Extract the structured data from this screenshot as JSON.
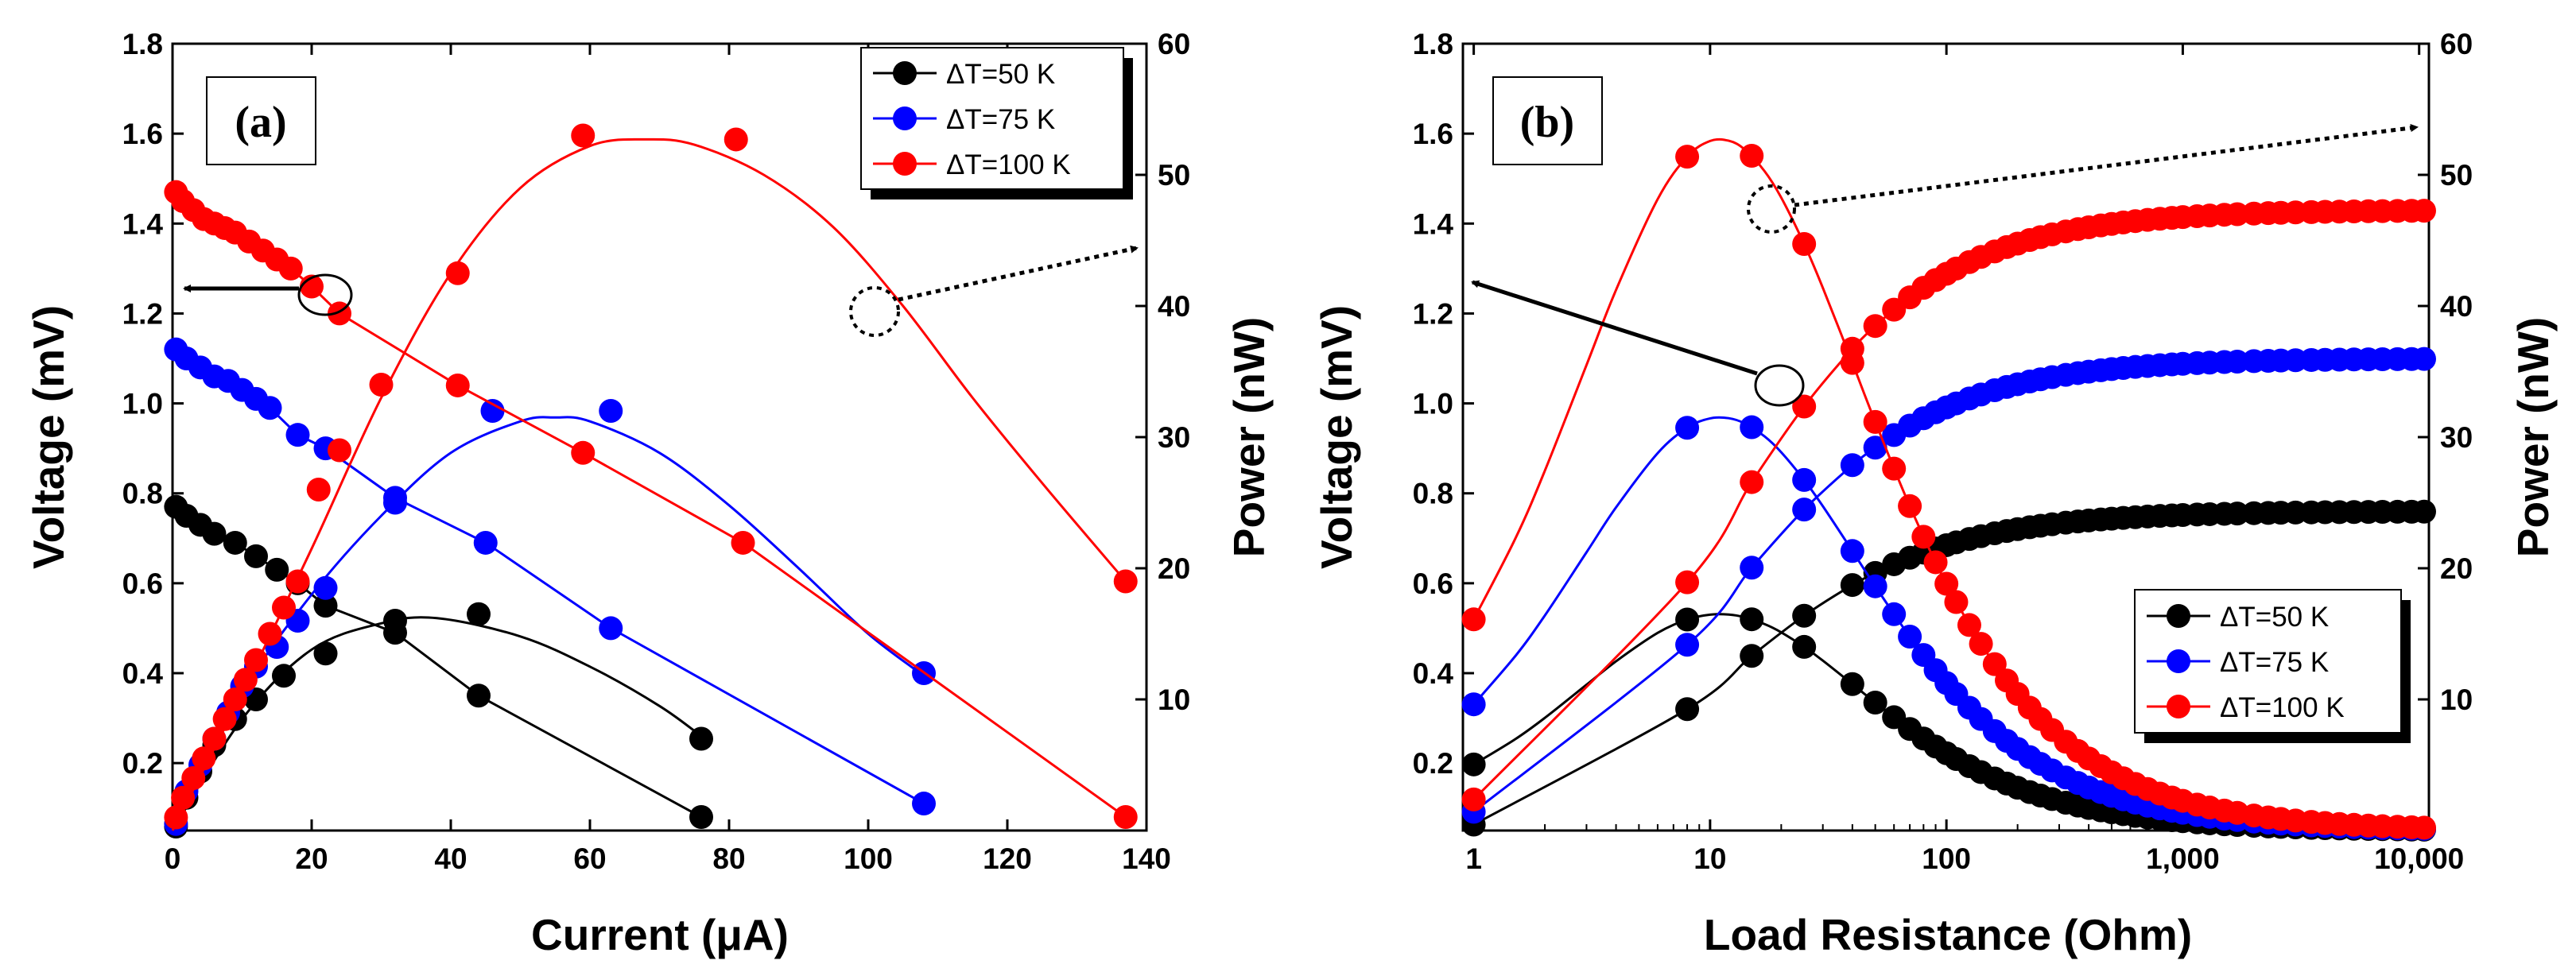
{
  "chart_data": [
    {
      "type": "line",
      "panel_label": "(a)",
      "xlabel": "Current (μA)",
      "ylabel_left": "Voltage (mV)",
      "ylabel_right": "Power (nW)",
      "xlim": [
        0,
        140
      ],
      "ylim_left": [
        0.05,
        1.8
      ],
      "ylim_right": [
        0,
        60
      ],
      "x_ticks": [
        0,
        20,
        40,
        60,
        80,
        100,
        120,
        140
      ],
      "x_tick_labels": [
        "0",
        "20",
        "40",
        "60",
        "80",
        "100",
        "120",
        "140"
      ],
      "y_ticks_left": [
        0.2,
        0.4,
        0.6,
        0.8,
        1.0,
        1.2,
        1.4,
        1.6,
        1.8
      ],
      "y_tick_labels_left": [
        "0.2",
        "0.4",
        "0.6",
        "0.8",
        "1.0",
        "1.2",
        "1.4",
        "1.6",
        "1.8"
      ],
      "y_ticks_right": [
        10,
        20,
        30,
        40,
        50,
        60
      ],
      "y_tick_labels_right": [
        "10",
        "20",
        "30",
        "40",
        "50",
        "60"
      ],
      "legend": [
        "ΔT=50 K",
        "ΔT=75 K",
        "ΔT=100 K"
      ],
      "legend_position": "top-right",
      "series": [
        {
          "name": "ΔT=50 K",
          "color": "#000000",
          "voltage": [
            [
              0.5,
              0.77
            ],
            [
              2,
              0.75
            ],
            [
              4,
              0.73
            ],
            [
              6,
              0.71
            ],
            [
              9,
              0.69
            ],
            [
              12,
              0.66
            ],
            [
              15,
              0.63
            ],
            [
              18,
              0.6
            ],
            [
              22,
              0.55
            ],
            [
              32,
              0.49
            ],
            [
              44,
              0.35
            ],
            [
              76,
              0.08
            ]
          ],
          "power": [
            [
              0.5,
              0.3
            ],
            [
              2,
              2.5
            ],
            [
              4,
              4.5
            ],
            [
              6,
              6.5
            ],
            [
              9,
              8.5
            ],
            [
              12,
              10
            ],
            [
              16,
              11.8
            ],
            [
              22,
              13.5
            ],
            [
              32,
              16
            ],
            [
              44,
              16.5
            ],
            [
              76,
              7
            ]
          ],
          "power_fit": [
            [
              0,
              0
            ],
            [
              10,
              8.5
            ],
            [
              20,
              13.8
            ],
            [
              30,
              15.8
            ],
            [
              38,
              16.2
            ],
            [
              50,
              14.8
            ],
            [
              60,
              12.5
            ],
            [
              70,
              9.5
            ],
            [
              76,
              7.2
            ]
          ]
        },
        {
          "name": "ΔT=75 K",
          "color": "#0000ff",
          "voltage": [
            [
              0.5,
              1.12
            ],
            [
              2,
              1.1
            ],
            [
              4,
              1.08
            ],
            [
              6,
              1.06
            ],
            [
              8,
              1.05
            ],
            [
              10,
              1.03
            ],
            [
              12,
              1.01
            ],
            [
              14,
              0.99
            ],
            [
              18,
              0.93
            ],
            [
              22,
              0.9
            ],
            [
              32,
              0.79
            ],
            [
              45,
              0.69
            ],
            [
              63,
              0.5
            ],
            [
              108,
              0.11
            ]
          ],
          "power": [
            [
              0.5,
              0.5
            ],
            [
              2,
              3
            ],
            [
              4,
              5
            ],
            [
              6,
              7
            ],
            [
              8,
              9
            ],
            [
              10,
              11
            ],
            [
              12,
              12.5
            ],
            [
              15,
              14
            ],
            [
              18,
              16
            ],
            [
              22,
              18.5
            ],
            [
              32,
              25
            ],
            [
              46,
              32
            ],
            [
              63,
              32
            ],
            [
              108,
              12
            ]
          ],
          "power_fit": [
            [
              0,
              0
            ],
            [
              10,
              10.5
            ],
            [
              20,
              18
            ],
            [
              30,
              24
            ],
            [
              40,
              28.8
            ],
            [
              50,
              31.2
            ],
            [
              55,
              31.5
            ],
            [
              60,
              31.2
            ],
            [
              70,
              28.8
            ],
            [
              80,
              24.8
            ],
            [
              90,
              20
            ],
            [
              100,
              15
            ],
            [
              108,
              11.8
            ]
          ]
        },
        {
          "name": "ΔT=100 K",
          "color": "#ff0000",
          "voltage": [
            [
              0.5,
              1.47
            ],
            [
              1.5,
              1.45
            ],
            [
              3,
              1.43
            ],
            [
              4.5,
              1.41
            ],
            [
              6,
              1.4
            ],
            [
              7.5,
              1.39
            ],
            [
              9,
              1.38
            ],
            [
              11,
              1.36
            ],
            [
              13,
              1.34
            ],
            [
              15,
              1.32
            ],
            [
              17,
              1.3
            ],
            [
              20,
              1.26
            ],
            [
              24,
              1.2
            ],
            [
              41,
              1.04
            ],
            [
              59,
              0.89
            ],
            [
              82,
              0.69
            ],
            [
              137,
              0.08
            ]
          ],
          "power": [
            [
              0.5,
              1
            ],
            [
              1.5,
              2.5
            ],
            [
              3,
              4
            ],
            [
              4.5,
              5.5
            ],
            [
              6,
              7
            ],
            [
              7.5,
              8.5
            ],
            [
              9,
              10
            ],
            [
              10.5,
              11.5
            ],
            [
              12,
              13
            ],
            [
              14,
              15
            ],
            [
              16,
              17
            ],
            [
              18,
              19
            ],
            [
              21,
              26
            ],
            [
              24,
              29
            ],
            [
              30,
              34
            ],
            [
              41,
              42.5
            ],
            [
              59,
              53
            ],
            [
              81,
              52.7
            ],
            [
              137,
              19
            ]
          ],
          "power_fit": [
            [
              0,
              0
            ],
            [
              10,
              10.5
            ],
            [
              20,
              21.5
            ],
            [
              30,
              33
            ],
            [
              40,
              42.5
            ],
            [
              50,
              49
            ],
            [
              60,
              52.2
            ],
            [
              68,
              52.7
            ],
            [
              75,
              52.3
            ],
            [
              85,
              50
            ],
            [
              95,
              46
            ],
            [
              105,
              40
            ],
            [
              115,
              33
            ],
            [
              125,
              26.5
            ],
            [
              137,
              19
            ]
          ]
        }
      ]
    },
    {
      "type": "line",
      "panel_label": "(b)",
      "xlabel": "Load Resistance (Ohm)",
      "ylabel_left": "Voltage (mV)",
      "ylabel_right": "Power (nW)",
      "xscale": "log",
      "xlim": [
        0.9,
        11000
      ],
      "ylim_left": [
        0.05,
        1.8
      ],
      "ylim_right": [
        0,
        60
      ],
      "x_ticks": [
        1,
        10,
        100,
        1000,
        10000
      ],
      "x_tick_labels": [
        "1",
        "10",
        "100",
        "1,000",
        "10,000"
      ],
      "y_ticks_left": [
        0.2,
        0.4,
        0.6,
        0.8,
        1.0,
        1.2,
        1.4,
        1.6,
        1.8
      ],
      "y_tick_labels_left": [
        "0.2",
        "0.4",
        "0.6",
        "0.8",
        "1.0",
        "1.2",
        "1.4",
        "1.6",
        "1.8"
      ],
      "y_ticks_right": [
        10,
        20,
        30,
        40,
        50,
        60
      ],
      "y_tick_labels_right": [
        "10",
        "20",
        "30",
        "40",
        "50",
        "60"
      ],
      "legend": [
        "ΔT=50 K",
        "ΔT=75 K",
        "ΔT=100 K"
      ],
      "legend_position": "bottom-right",
      "series": [
        {
          "name": "ΔT=50 K",
          "color": "#000000",
          "v_sat": 0.76,
          "v_r0": 11,
          "p_peak": 16.5,
          "p_peak_r": 11
        },
        {
          "name": "ΔT=75 K",
          "color": "#0000ff",
          "v_sat": 1.1,
          "v_r0": 11,
          "p_peak": 31.5,
          "p_peak_r": 11
        },
        {
          "name": "ΔT=100 K",
          "color": "#ff0000",
          "v_sat": 1.43,
          "v_r0": 11,
          "p_peak": 52.7,
          "p_peak_r": 11
        }
      ],
      "voltage_r": [
        1,
        8,
        15,
        25,
        40,
        50,
        60,
        70,
        80,
        90,
        100,
        110,
        125,
        140,
        160,
        180,
        200,
        225,
        250,
        280,
        320,
        360,
        400,
        450,
        500,
        560,
        630,
        710,
        800,
        900,
        1000,
        1150,
        1300,
        1500,
        1700,
        2000,
        2300,
        2600,
        3000,
        3500,
        4000,
        4600,
        5300,
        6100,
        7000,
        8100,
        9300,
        10500
      ],
      "power_r": [
        1,
        8,
        15,
        25,
        40,
        50,
        60,
        70,
        80,
        90,
        100,
        110,
        125,
        140,
        160,
        180,
        200,
        225,
        250,
        280,
        320,
        360,
        400,
        450,
        500,
        560,
        630,
        710,
        800,
        900,
        1000,
        1150,
        1300,
        1500,
        1700,
        2000,
        2300,
        2600,
        3000,
        3500,
        4000,
        4600,
        5300,
        6100,
        7000,
        8100,
        9300,
        10500
      ],
      "power_fit_r": [
        1,
        1.5,
        2,
        3,
        4,
        6,
        8,
        10,
        12,
        14,
        17,
        20,
        25,
        30,
        40,
        50,
        70,
        100,
        150,
        200,
        300,
        500,
        700,
        1000,
        1500,
        2000,
        3000,
        5000,
        7000,
        10500
      ]
    }
  ]
}
